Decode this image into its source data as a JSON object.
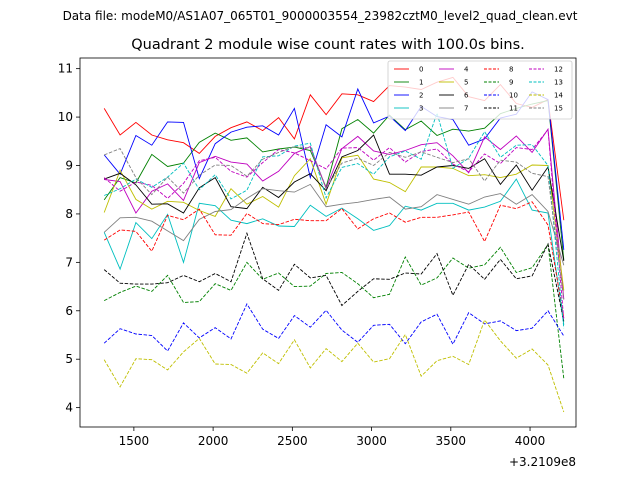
{
  "chart_data": {
    "type": "line",
    "suptitle": "Data file: modeM0/AS1A07_065T01_9000003554_23982cztM0_level2_quad_clean.evt",
    "title": "Quadrant 2 module wise count rates with 100.0s bins.",
    "xlabel": "",
    "ylabel": "",
    "x_offset_label": "+3.2109e8",
    "xlim": [
      1160,
      4290
    ],
    "ylim": [
      3.6,
      11.22
    ],
    "xticks": [
      1500,
      2000,
      2500,
      3000,
      3500,
      4000
    ],
    "yticks": [
      4,
      5,
      6,
      7,
      8,
      9,
      10,
      11
    ],
    "grid": false,
    "legend_position": "top-right",
    "x": [
      1313,
      1413,
      1513,
      1613,
      1713,
      1813,
      1913,
      2013,
      2113,
      2213,
      2313,
      2413,
      2513,
      2613,
      2713,
      2813,
      2913,
      3013,
      3113,
      3213,
      3313,
      3413,
      3513,
      3613,
      3713,
      3813,
      3913,
      4013,
      4113,
      4213
    ],
    "series": [
      {
        "name": "0",
        "color": "#ff0000",
        "style": "solid",
        "values": [
          10.18,
          9.63,
          9.89,
          9.63,
          9.53,
          9.47,
          9.25,
          9.6,
          9.78,
          9.9,
          9.72,
          9.99,
          9.55,
          10.46,
          10.05,
          10.48,
          10.46,
          10.32,
          10.65,
          10.62,
          10.57,
          10.72,
          10.82,
          10.42,
          10.34,
          10.67,
          10.28,
          10.2,
          10.36,
          7.87
        ]
      },
      {
        "name": "1",
        "color": "#008000",
        "style": "solid",
        "values": [
          8.29,
          8.75,
          8.64,
          9.23,
          8.98,
          9.05,
          9.48,
          9.67,
          9.52,
          9.57,
          9.28,
          9.34,
          9.38,
          9.31,
          8.55,
          9.76,
          9.95,
          9.67,
          10.04,
          9.74,
          9.92,
          9.62,
          9.75,
          9.71,
          9.77,
          10.07,
          10.18,
          10.27,
          10.34,
          7.05
        ]
      },
      {
        "name": "2",
        "color": "#0000ff",
        "style": "solid",
        "values": [
          9.22,
          8.82,
          9.62,
          9.42,
          9.9,
          9.89,
          8.73,
          9.45,
          9.69,
          9.79,
          9.82,
          9.63,
          10.18,
          8.75,
          9.84,
          9.59,
          10.58,
          9.88,
          10.02,
          9.72,
          10.22,
          10.01,
          9.95,
          9.42,
          9.55,
          9.98,
          10.06,
          10.52,
          10.36,
          7.26
        ]
      },
      {
        "name": "3",
        "color": "#00bfbf",
        "style": "solid",
        "values": [
          7.62,
          6.86,
          7.82,
          7.49,
          7.99,
          7.0,
          8.22,
          8.17,
          7.87,
          7.8,
          7.9,
          7.75,
          7.74,
          8.18,
          7.95,
          8.12,
          7.9,
          7.66,
          7.76,
          8.16,
          8.08,
          8.22,
          8.22,
          8.08,
          8.14,
          8.26,
          8.72,
          8.08,
          8.02,
          5.71
        ]
      },
      {
        "name": "4",
        "color": "#bf00bf",
        "style": "solid",
        "values": [
          8.71,
          8.67,
          8.02,
          8.47,
          8.62,
          8.28,
          9.06,
          9.19,
          9.07,
          9.03,
          8.68,
          8.88,
          9.25,
          9.39,
          8.53,
          9.35,
          9.6,
          9.3,
          9.23,
          9.31,
          9.43,
          9.47,
          9.2,
          8.85,
          9.59,
          9.33,
          9.61,
          9.27,
          9.75,
          6.24
        ]
      },
      {
        "name": "5",
        "color": "#bfbf00",
        "style": "solid",
        "values": [
          8.03,
          8.9,
          8.3,
          8.1,
          8.26,
          8.24,
          8.07,
          7.95,
          8.52,
          8.2,
          8.36,
          8.14,
          8.79,
          9.14,
          8.2,
          9.16,
          9.21,
          8.72,
          8.65,
          8.46,
          8.97,
          8.97,
          8.94,
          8.79,
          8.81,
          8.75,
          8.82,
          9.01,
          9.0,
          6.42
        ]
      },
      {
        "name": "6",
        "color": "#000000",
        "style": "solid",
        "values": [
          8.72,
          8.84,
          8.6,
          8.2,
          8.21,
          8.02,
          8.54,
          8.75,
          8.15,
          8.11,
          8.55,
          8.34,
          8.66,
          8.83,
          8.48,
          9.18,
          9.31,
          9.63,
          8.82,
          8.82,
          8.8,
          8.97,
          9.0,
          8.94,
          9.14,
          8.61,
          9.01,
          8.49,
          8.97,
          7.03
        ]
      },
      {
        "name": "7",
        "color": "#808080",
        "style": "solid",
        "values": [
          7.62,
          7.92,
          7.93,
          7.85,
          7.65,
          7.45,
          7.89,
          8.05,
          8.09,
          8.32,
          8.52,
          8.48,
          8.45,
          8.61,
          8.15,
          8.2,
          8.24,
          8.3,
          8.35,
          8.1,
          8.15,
          8.4,
          8.3,
          8.2,
          8.35,
          8.42,
          8.2,
          8.4,
          8.05,
          6.94
        ]
      },
      {
        "name": "8",
        "color": "#ff0000",
        "style": "dashed",
        "values": [
          7.46,
          7.67,
          7.64,
          7.23,
          7.97,
          7.88,
          8.1,
          7.57,
          7.56,
          8.01,
          7.8,
          7.78,
          7.89,
          7.86,
          7.86,
          8.11,
          7.69,
          7.9,
          8.02,
          7.83,
          7.93,
          7.93,
          7.98,
          8.04,
          7.43,
          8.18,
          8.11,
          8.25,
          7.77,
          5.85
        ]
      },
      {
        "name": "9",
        "color": "#008000",
        "style": "dashed",
        "values": [
          6.21,
          6.38,
          6.51,
          6.4,
          6.73,
          6.17,
          6.19,
          6.56,
          6.42,
          7.0,
          6.65,
          6.78,
          6.5,
          6.51,
          6.77,
          6.79,
          6.56,
          6.27,
          6.34,
          7.11,
          6.53,
          6.68,
          7.09,
          6.88,
          6.95,
          7.31,
          6.79,
          6.89,
          7.37,
          4.6
        ]
      },
      {
        "name": "10",
        "color": "#0000ff",
        "style": "dashed",
        "values": [
          5.33,
          5.63,
          5.52,
          5.49,
          5.17,
          5.75,
          5.44,
          5.65,
          5.42,
          6.14,
          5.62,
          5.43,
          5.9,
          5.66,
          6.01,
          5.6,
          5.35,
          5.7,
          5.72,
          5.32,
          5.77,
          5.93,
          5.31,
          5.96,
          5.73,
          5.79,
          5.59,
          5.64,
          6.0,
          5.48
        ]
      },
      {
        "name": "11",
        "color": "#000000",
        "style": "dashed",
        "values": [
          6.85,
          6.57,
          6.55,
          6.55,
          6.58,
          6.73,
          6.6,
          6.77,
          6.6,
          7.6,
          6.66,
          6.42,
          6.96,
          6.68,
          6.73,
          6.11,
          6.4,
          6.66,
          6.65,
          6.78,
          6.76,
          7.18,
          6.32,
          6.96,
          6.65,
          7.06,
          6.66,
          6.72,
          7.38,
          5.78
        ]
      },
      {
        "name": "12",
        "color": "#bf00bf",
        "style": "dashed",
        "values": [
          8.75,
          8.47,
          8.66,
          8.59,
          8.32,
          8.63,
          9.1,
          9.17,
          8.88,
          8.76,
          9.06,
          9.33,
          9.26,
          9.1,
          8.93,
          9.36,
          9.37,
          9.11,
          9.37,
          9.07,
          9.29,
          9.34,
          9.03,
          8.87,
          9.24,
          9.04,
          9.37,
          9.33,
          9.74,
          5.81
        ]
      },
      {
        "name": "13",
        "color": "#00bfbf",
        "style": "dashed",
        "values": [
          8.38,
          8.52,
          8.72,
          8.55,
          8.76,
          9.05,
          8.5,
          8.81,
          8.31,
          8.49,
          9.18,
          9.2,
          9.4,
          9.46,
          8.33,
          8.96,
          9.04,
          8.82,
          9.18,
          9.3,
          9.13,
          10.08,
          8.94,
          9.15,
          9.7,
          9.17,
          9.42,
          9.43,
          9.0,
          5.64
        ]
      },
      {
        "name": "14",
        "color": "#bfbf00",
        "style": "dashed",
        "values": [
          4.99,
          4.43,
          5.01,
          4.99,
          4.78,
          5.15,
          5.43,
          4.9,
          4.89,
          4.71,
          5.13,
          4.91,
          5.4,
          4.82,
          5.22,
          4.95,
          5.33,
          4.94,
          5.01,
          5.51,
          4.65,
          4.97,
          5.06,
          4.89,
          5.81,
          5.38,
          5.02,
          5.21,
          4.88,
          3.91
        ]
      },
      {
        "name": "15",
        "color": "#808080",
        "style": "dashed",
        "values": [
          9.22,
          9.35,
          8.75,
          8.4,
          8.76,
          8.43,
          8.8,
          9.01,
          9.0,
          8.78,
          9.13,
          9.27,
          9.39,
          9.36,
          8.52,
          9.05,
          9.15,
          9.0,
          9.27,
          9.17,
          9.28,
          9.17,
          9.06,
          9.14,
          8.68,
          9.11,
          9.07,
          8.84,
          8.77,
          6.23
        ]
      }
    ]
  }
}
